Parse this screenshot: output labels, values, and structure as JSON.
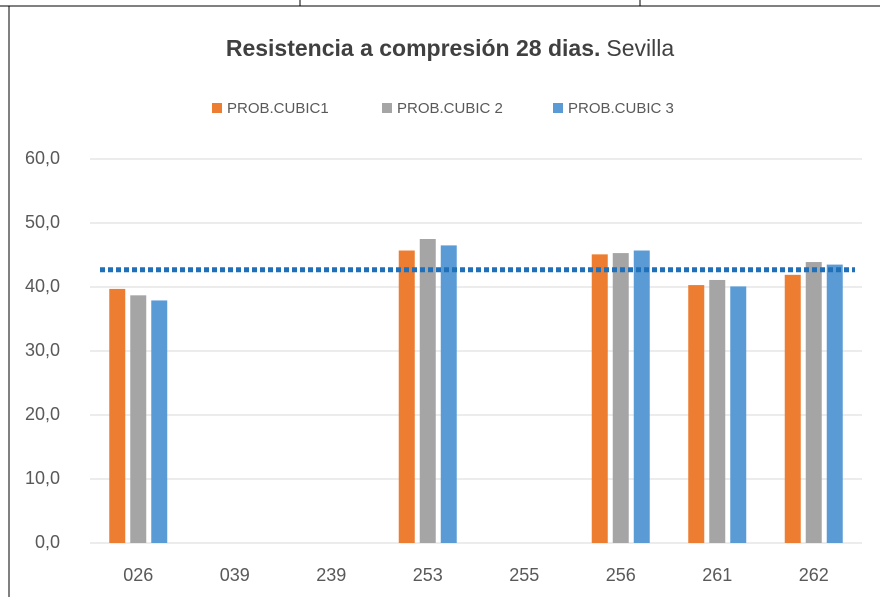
{
  "chart_data": {
    "type": "bar",
    "title": "Resistencia a compresión 28 dias.",
    "subtitle": "Sevilla",
    "categories": [
      "026",
      "039",
      "239",
      "253",
      "255",
      "256",
      "261",
      "262"
    ],
    "series": [
      {
        "name": "PROB.CUBIC1",
        "color": "#ed7d31",
        "values": [
          39.7,
          null,
          null,
          45.7,
          null,
          45.1,
          40.3,
          41.9
        ]
      },
      {
        "name": "PROB.CUBIC 2",
        "color": "#a5a5a5",
        "values": [
          38.7,
          null,
          null,
          47.5,
          null,
          45.3,
          41.1,
          43.9
        ]
      },
      {
        "name": "PROB.CUBIC 3",
        "color": "#5b9bd5",
        "values": [
          37.9,
          null,
          null,
          46.5,
          null,
          45.7,
          40.1,
          43.5
        ]
      }
    ],
    "reference_line": {
      "value": 42.7,
      "color": "#1f70b8"
    },
    "ylim": [
      0,
      60
    ],
    "yticks": [
      {
        "value": 0,
        "label": "0,0"
      },
      {
        "value": 10,
        "label": "10,0"
      },
      {
        "value": 20,
        "label": "20,0"
      },
      {
        "value": 30,
        "label": "30,0"
      },
      {
        "value": 40,
        "label": "40,0"
      },
      {
        "value": 50,
        "label": "50,0"
      },
      {
        "value": 60,
        "label": "60,0"
      }
    ],
    "grid": true,
    "legend": "top"
  }
}
